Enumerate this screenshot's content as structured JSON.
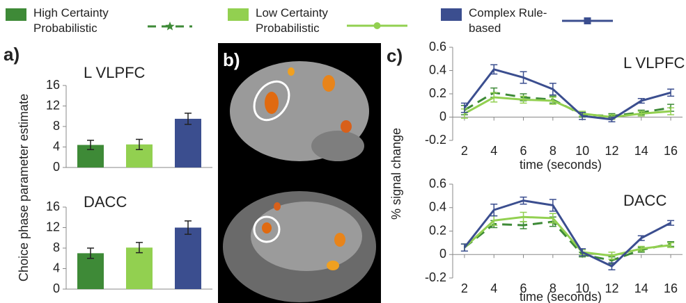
{
  "legend": [
    {
      "name": "High Certainty Probabilistic",
      "color": "#3e8a37",
      "marker": "star",
      "dashed": true
    },
    {
      "name": "Low Certainty Probabilistic",
      "color": "#92d050",
      "marker": "circle",
      "dashed": false
    },
    {
      "name": "Complex Rule-based",
      "color": "#3b4e8f",
      "marker": "square",
      "dashed": false
    }
  ],
  "chart_data": [
    {
      "type": "bar",
      "panel": "a)",
      "title": "L VLPFC",
      "ylabel": "Choice phase parameter estimate",
      "ylim": [
        0,
        16
      ],
      "yticks": [
        0,
        4,
        8,
        12,
        16
      ],
      "series": [
        {
          "color": "#3e8a37",
          "values": [
            4.4
          ],
          "errors": [
            0.9
          ]
        },
        {
          "color": "#92d050",
          "values": [
            4.5
          ],
          "errors": [
            1.0
          ]
        },
        {
          "color": "#3b4e8f",
          "values": [
            9.5
          ],
          "errors": [
            1.1
          ]
        }
      ]
    },
    {
      "type": "bar",
      "title": "DACC",
      "ylim": [
        0,
        16
      ],
      "yticks": [
        0,
        4,
        8,
        12,
        16
      ],
      "series": [
        {
          "color": "#3e8a37",
          "values": [
            7.0
          ],
          "errors": [
            1.0
          ]
        },
        {
          "color": "#92d050",
          "values": [
            8.1
          ],
          "errors": [
            1.0
          ]
        },
        {
          "color": "#3b4e8f",
          "values": [
            12.0
          ],
          "errors": [
            1.3
          ]
        }
      ]
    },
    {
      "type": "line",
      "panel": "c)",
      "title": "L VLPFC",
      "ylabel": "% signal change",
      "xlabel": "time (seconds)",
      "x": [
        2,
        4,
        6,
        8,
        10,
        12,
        14,
        16
      ],
      "xlim": [
        1.2,
        16.8
      ],
      "xticks": [
        2,
        4,
        6,
        8,
        10,
        12,
        14,
        16
      ],
      "ylim": [
        -0.2,
        0.6
      ],
      "yticks": [
        -0.2,
        0,
        0.2,
        0.4,
        0.6
      ],
      "series": [
        {
          "color": "#3e8a37",
          "dashed": true,
          "values": [
            0.06,
            0.21,
            0.17,
            0.15,
            0.02,
            0.01,
            0.04,
            0.08
          ],
          "errors": [
            0.04,
            0.04,
            0.03,
            0.03,
            0.02,
            0.02,
            0.02,
            0.03
          ]
        },
        {
          "color": "#92d050",
          "dashed": false,
          "values": [
            0.03,
            0.17,
            0.15,
            0.14,
            0.03,
            0.0,
            0.03,
            0.05
          ],
          "errors": [
            0.04,
            0.04,
            0.03,
            0.03,
            0.02,
            0.02,
            0.02,
            0.03
          ]
        },
        {
          "color": "#3b4e8f",
          "dashed": false,
          "values": [
            0.08,
            0.41,
            0.34,
            0.24,
            0.01,
            -0.02,
            0.14,
            0.21
          ],
          "errors": [
            0.04,
            0.04,
            0.05,
            0.05,
            0.03,
            0.02,
            0.02,
            0.03
          ]
        }
      ]
    },
    {
      "type": "line",
      "xlabel": "time (seconds)",
      "title": "DACC",
      "x": [
        2,
        4,
        6,
        8,
        10,
        12,
        14,
        16
      ],
      "xlim": [
        1.2,
        16.8
      ],
      "xticks": [
        2,
        4,
        6,
        8,
        10,
        12,
        14,
        16
      ],
      "ylim": [
        -0.2,
        0.6
      ],
      "yticks": [
        -0.2,
        0,
        0.2,
        0.4,
        0.6
      ],
      "series": [
        {
          "color": "#3e8a37",
          "dashed": true,
          "values": [
            0.06,
            0.26,
            0.25,
            0.28,
            0.0,
            -0.05,
            0.04,
            0.09
          ],
          "errors": [
            0.03,
            0.03,
            0.03,
            0.04,
            0.02,
            0.03,
            0.02,
            0.02
          ]
        },
        {
          "color": "#92d050",
          "dashed": false,
          "values": [
            0.06,
            0.29,
            0.32,
            0.31,
            0.02,
            -0.01,
            0.05,
            0.08
          ],
          "errors": [
            0.03,
            0.04,
            0.04,
            0.04,
            0.02,
            0.03,
            0.02,
            0.02
          ]
        },
        {
          "color": "#3b4e8f",
          "dashed": false,
          "values": [
            0.06,
            0.38,
            0.46,
            0.42,
            0.02,
            -0.1,
            0.14,
            0.27
          ],
          "errors": [
            0.03,
            0.05,
            0.03,
            0.05,
            0.03,
            0.03,
            0.02,
            0.02
          ]
        }
      ]
    }
  ],
  "panel_b_label": "b)"
}
